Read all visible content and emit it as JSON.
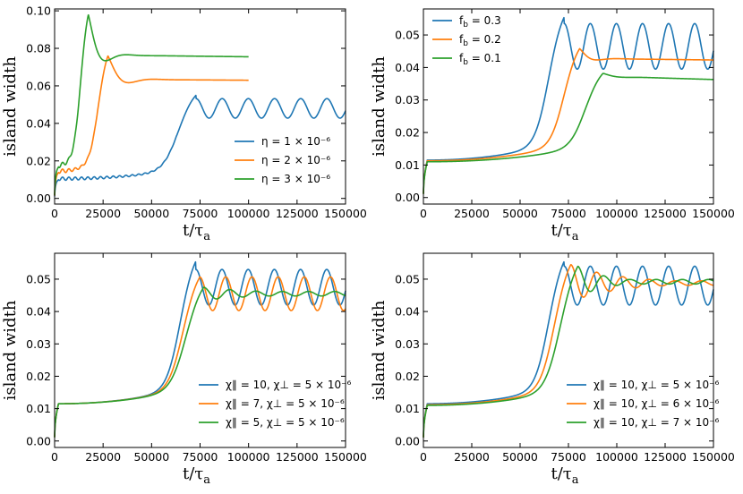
{
  "chart_data": [
    {
      "type": "line",
      "ylabel": "island width",
      "xlabel": "t/τ",
      "xlabel_sub": "a",
      "xlim": [
        0,
        150000
      ],
      "ylim": [
        -0.003,
        0.101
      ],
      "xticks": [
        0,
        25000,
        50000,
        75000,
        100000,
        125000,
        150000
      ],
      "yticks": [
        0.0,
        0.02,
        0.04,
        0.06,
        0.08,
        0.1
      ],
      "yticklabels": [
        "0.00",
        "0.02",
        "0.04",
        "0.06",
        "0.08",
        "0.10"
      ],
      "legend_position": "lower-right",
      "series": [
        {
          "name": "η = 1 × 10⁻⁶",
          "color": "#1f77b4",
          "x_end": 150000,
          "base": 0.0105,
          "rise_at": 63000,
          "rise_width": 4500,
          "peak": 0.055,
          "osc_mean": 0.048,
          "osc_amp": 0.0052,
          "osc_period": 13500,
          "noise": 0.0009
        },
        {
          "name": "η = 2 × 10⁻⁶",
          "color": "#ff7f0e",
          "x_end": 100000,
          "base": 0.0145,
          "rise_at": 22000,
          "rise_width": 2500,
          "peak": 0.076,
          "settle": 0.0635,
          "settle_end": 0.063,
          "damp": 6000,
          "noise": 0.0012
        },
        {
          "name": "η = 3 × 10⁻⁶",
          "color": "#2ca02c",
          "x_end": 100000,
          "base": 0.0175,
          "rise_at": 13000,
          "rise_width": 2000,
          "peak": 0.098,
          "settle": 0.0765,
          "settle_end": 0.0755,
          "damp": 5000,
          "noise": 0.0015
        }
      ]
    },
    {
      "type": "line",
      "ylabel": "island width",
      "xlabel": "t/τ",
      "xlabel_sub": "a",
      "xlim": [
        0,
        150000
      ],
      "ylim": [
        -0.002,
        0.058
      ],
      "xticks": [
        0,
        25000,
        50000,
        75000,
        100000,
        125000,
        150000
      ],
      "yticks": [
        0.0,
        0.01,
        0.02,
        0.03,
        0.04,
        0.05
      ],
      "yticklabels": [
        "0.00",
        "0.01",
        "0.02",
        "0.03",
        "0.04",
        "0.05"
      ],
      "legend_position": "top-left",
      "series": [
        {
          "name": "f",
          "sub": "b",
          "value_text": " = 0.3",
          "color": "#1f77b4",
          "x_end": 150000,
          "base": 0.0115,
          "rise_at": 64000,
          "rise_width": 4000,
          "peak": 0.0555,
          "osc_mean": 0.0465,
          "osc_amp": 0.007,
          "osc_period": 13500
        },
        {
          "name": "f",
          "sub": "b",
          "value_text": " = 0.2",
          "color": "#ff7f0e",
          "x_end": 150000,
          "base": 0.0113,
          "rise_at": 72000,
          "rise_width": 4000,
          "peak": 0.0458,
          "settle": 0.0428,
          "settle_end": 0.0423,
          "damp": 5000
        },
        {
          "name": "f",
          "sub": "b",
          "value_text": " = 0.1",
          "color": "#2ca02c",
          "x_end": 150000,
          "base": 0.011,
          "rise_at": 83000,
          "rise_width": 4500,
          "peak": 0.0382,
          "settle": 0.0373,
          "settle_end": 0.0363,
          "damp": 6000
        }
      ]
    },
    {
      "type": "line",
      "ylabel": "island width",
      "xlabel": "t/τ",
      "xlabel_sub": "a",
      "xlim": [
        0,
        150000
      ],
      "ylim": [
        -0.002,
        0.058
      ],
      "xticks": [
        0,
        25000,
        50000,
        75000,
        100000,
        125000,
        150000
      ],
      "yticks": [
        0.0,
        0.01,
        0.02,
        0.03,
        0.04,
        0.05
      ],
      "yticklabels": [
        "0.00",
        "0.01",
        "0.02",
        "0.03",
        "0.04",
        "0.05"
      ],
      "legend_position": "lower-right",
      "series": [
        {
          "name": "χ∥ = 10, χ⊥ = 5 × 10⁻⁶",
          "color": "#1f77b4",
          "x_end": 150000,
          "base": 0.0115,
          "rise_at": 64000,
          "rise_width": 4000,
          "peak": 0.0555,
          "osc_mean": 0.0475,
          "osc_amp": 0.0055,
          "osc_period": 13500
        },
        {
          "name": "χ∥ = 7, χ⊥ = 5 × 10⁻⁶",
          "color": "#ff7f0e",
          "x_end": 150000,
          "base": 0.0115,
          "rise_at": 65500,
          "rise_width": 4200,
          "peak": 0.0505,
          "osc_mean": 0.0455,
          "osc_amp": 0.0052,
          "osc_period": 13500
        },
        {
          "name": "χ∥ = 5, χ⊥ = 5 × 10⁻⁶",
          "color": "#2ca02c",
          "x_end": 150000,
          "base": 0.0115,
          "rise_at": 67000,
          "rise_width": 4500,
          "peak": 0.0475,
          "osc_mean": 0.0455,
          "osc_amp": 0.0015,
          "osc_period": 13500,
          "osc_decay": 30000
        }
      ]
    },
    {
      "type": "line",
      "ylabel": "island width",
      "xlabel": "t/τ",
      "xlabel_sub": "a",
      "xlim": [
        0,
        150000
      ],
      "ylim": [
        -0.002,
        0.058
      ],
      "xticks": [
        0,
        25000,
        50000,
        75000,
        100000,
        125000,
        150000
      ],
      "yticks": [
        0.0,
        0.01,
        0.02,
        0.03,
        0.04,
        0.05
      ],
      "yticklabels": [
        "0.00",
        "0.01",
        "0.02",
        "0.03",
        "0.04",
        "0.05"
      ],
      "legend_position": "lower-right",
      "series": [
        {
          "name": "χ∥ = 10, χ⊥ = 5 × 10⁻⁶",
          "color": "#1f77b4",
          "x_end": 150000,
          "base": 0.0115,
          "rise_at": 64000,
          "rise_width": 4000,
          "peak": 0.0555,
          "osc_mean": 0.048,
          "osc_amp": 0.006,
          "osc_period": 13500
        },
        {
          "name": "χ∥ = 10, χ⊥ = 6 × 10⁻⁶",
          "color": "#ff7f0e",
          "x_end": 150000,
          "base": 0.0112,
          "rise_at": 67000,
          "rise_width": 4200,
          "peak": 0.0545,
          "osc_mean": 0.0488,
          "osc_amp": 0.004,
          "osc_period": 13500,
          "osc_decay": 25000
        },
        {
          "name": "χ∥ = 10, χ⊥ = 7 × 10⁻⁶",
          "color": "#2ca02c",
          "x_end": 150000,
          "base": 0.011,
          "rise_at": 70000,
          "rise_width": 4500,
          "peak": 0.054,
          "osc_mean": 0.0492,
          "osc_amp": 0.0025,
          "osc_period": 13500,
          "osc_decay": 14000
        }
      ]
    }
  ]
}
